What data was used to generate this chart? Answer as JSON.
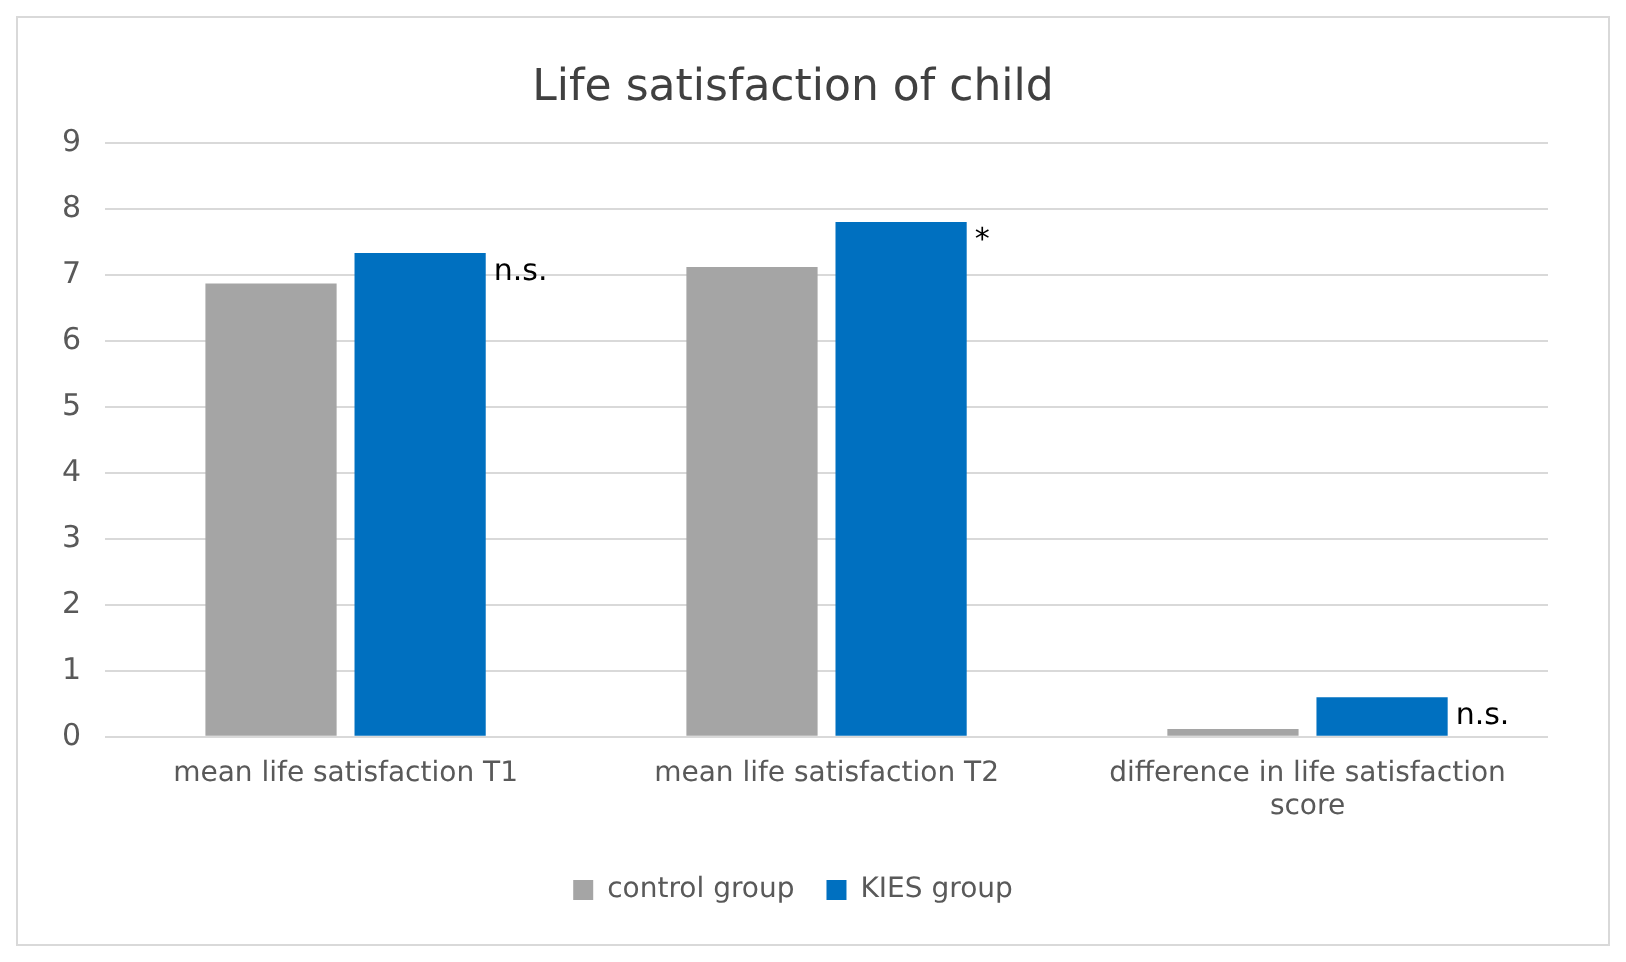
{
  "chart_data": {
    "type": "bar",
    "title": "Life satisfaction of child",
    "categories": [
      "mean life satisfaction T1",
      "mean life satisfaction T2",
      "difference in life satisfaction score"
    ],
    "series": [
      {
        "name": "control group",
        "color": "#a5a5a5",
        "values": [
          6.87,
          7.12,
          0.12
        ]
      },
      {
        "name": "KIES group",
        "color": "#0070c0",
        "values": [
          7.33,
          7.8,
          0.6
        ]
      }
    ],
    "ylim": [
      0,
      9
    ],
    "yticks": [
      0,
      1,
      2,
      3,
      4,
      5,
      6,
      7,
      8,
      9
    ],
    "grid": "y",
    "legend": "bottom",
    "annotations": [
      "n.s.",
      "*",
      "n.s."
    ]
  }
}
